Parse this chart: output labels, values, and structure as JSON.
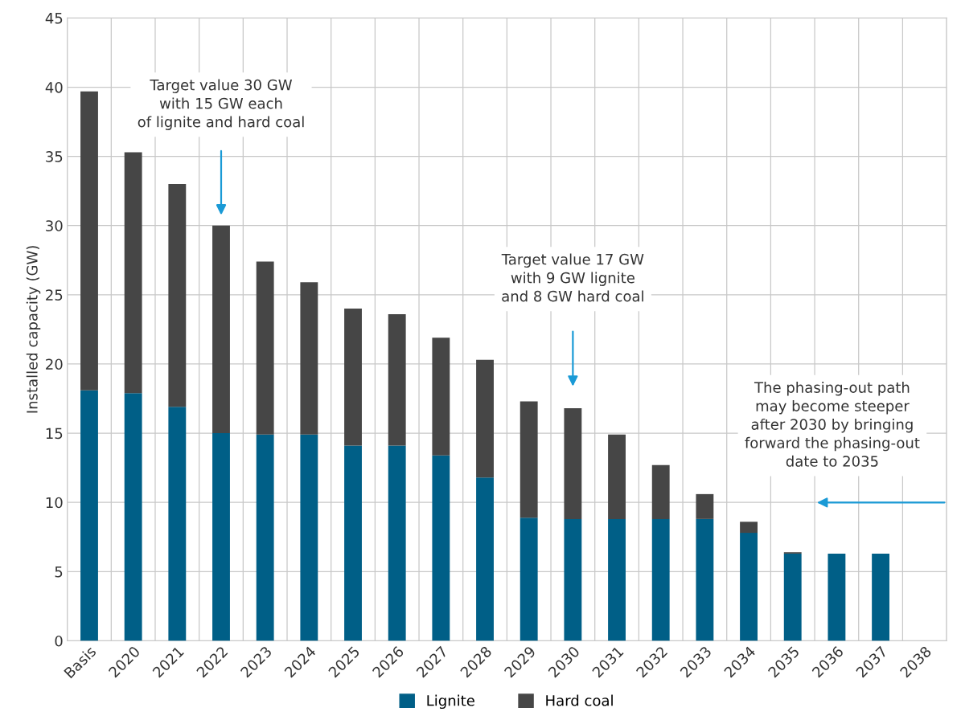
{
  "chart_data": {
    "type": "bar",
    "stacked": true,
    "ylabel": "Installed capacity (GW)",
    "categories": [
      "Basis",
      "2020",
      "2021",
      "2022",
      "2023",
      "2024",
      "2025",
      "2026",
      "2027",
      "2028",
      "2029",
      "2030",
      "2031",
      "2032",
      "2033",
      "2034",
      "2035",
      "2036",
      "2037",
      "2038"
    ],
    "series": [
      {
        "name": "Lignite",
        "color": "#005f87",
        "values": [
          18.1,
          17.9,
          16.9,
          15.0,
          14.9,
          14.9,
          14.1,
          14.1,
          13.4,
          11.8,
          8.9,
          8.8,
          8.8,
          8.8,
          8.8,
          7.8,
          6.3,
          6.3,
          6.3,
          0
        ]
      },
      {
        "name": "Hard coal",
        "color": "#464646",
        "values": [
          21.6,
          17.4,
          16.1,
          15.0,
          12.5,
          11.0,
          9.9,
          9.5,
          8.5,
          8.5,
          8.4,
          8.0,
          6.1,
          3.9,
          1.8,
          0.8,
          0.1,
          0,
          0,
          0
        ]
      }
    ],
    "ylim": [
      0,
      45
    ],
    "yticks": [
      0,
      5,
      10,
      15,
      20,
      25,
      30,
      35,
      40,
      45
    ],
    "grid": true,
    "legend": "bottom",
    "annotations": [
      "Target value 30 GW\nwith 15 GW each\nof lignite and hard coal",
      "Target value 17 GW\nwith 9 GW lignite\nand 8 GW hard coal",
      "The phasing-out path\nmay become steeper\nafter 2030 by bringing\nforward the phasing-out\ndate to 2035"
    ]
  }
}
